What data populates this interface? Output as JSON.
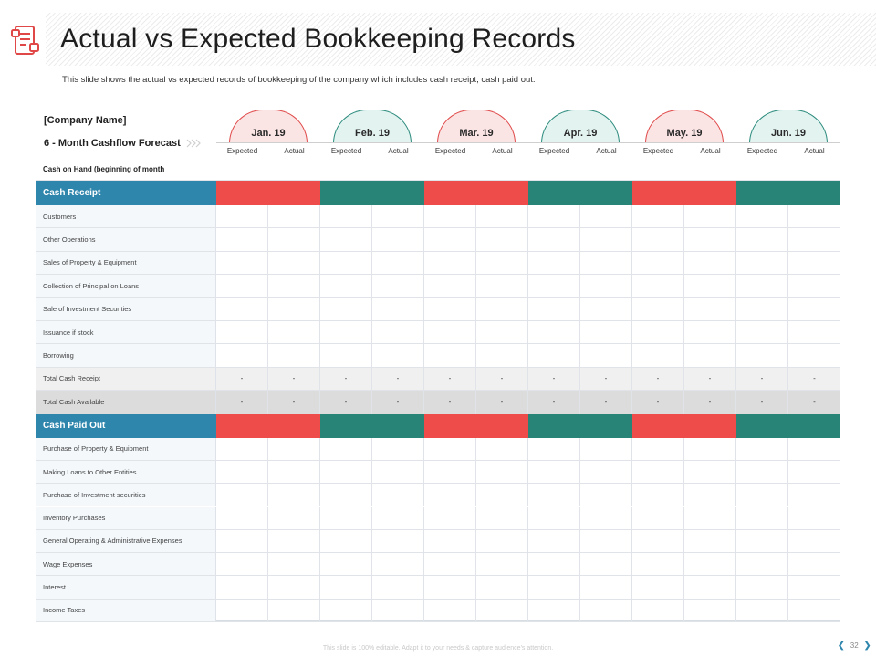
{
  "title": "Actual vs Expected Bookkeeping Records",
  "subtitle": "This slide shows the actual vs expected records of bookkeeping of the company which includes cash receipt, cash paid out.",
  "company_name": "[Company Name]",
  "forecast_label": "6 - Month Cashflow Forecast",
  "months": [
    {
      "label": "Jan. 19",
      "color": "red"
    },
    {
      "label": "Feb. 19",
      "color": "teal"
    },
    {
      "label": "Mar. 19",
      "color": "red"
    },
    {
      "label": "Apr. 19",
      "color": "teal"
    },
    {
      "label": "May. 19",
      "color": "red"
    },
    {
      "label": "Jun. 19",
      "color": "teal"
    }
  ],
  "col_expected": "Expected",
  "col_actual": "Actual",
  "cash_on_hand": "Cash on Hand (beginning of month",
  "cash_receipt": {
    "title": "Cash Receipt",
    "items": [
      "Customers",
      "Other Operations",
      "Sales of Property & Equipment",
      "Collection of Principal on Loans",
      "Sale of Investment Securities",
      "Issuance if stock",
      "Borrowing"
    ]
  },
  "total_cash_receipt": {
    "label": "Total Cash Receipt",
    "values": [
      "-",
      "-",
      "-",
      "-",
      "-",
      "-",
      "-",
      "-",
      "-",
      "-",
      "-",
      "-"
    ]
  },
  "total_cash_available": {
    "label": "Total Cash Available",
    "values": [
      "-",
      "-",
      "-",
      "-",
      "-",
      "-",
      "-",
      "-",
      "-",
      "-",
      "-",
      "-"
    ]
  },
  "cash_paid_out": {
    "title": "Cash Paid Out",
    "items": [
      "Purchase of Property & Equipment",
      "Making Loans to Other Entities",
      "Purchase of Investment securities",
      "Inventory Purchases",
      "General Operating & Administrative Expenses",
      "Wage Expenses",
      "Interest",
      "Income Taxes"
    ]
  },
  "footer": "This slide is 100% editable. Adapt it to your needs & capture audience's attention.",
  "page_number": "32",
  "colors": {
    "red": "#ee4b4b",
    "teal": "#288477",
    "section_blue": "#2f86ad"
  },
  "icons": {
    "title": "bookkeeping-document-icon",
    "prev": "chevron-left-icon",
    "next": "chevron-right-icon"
  }
}
